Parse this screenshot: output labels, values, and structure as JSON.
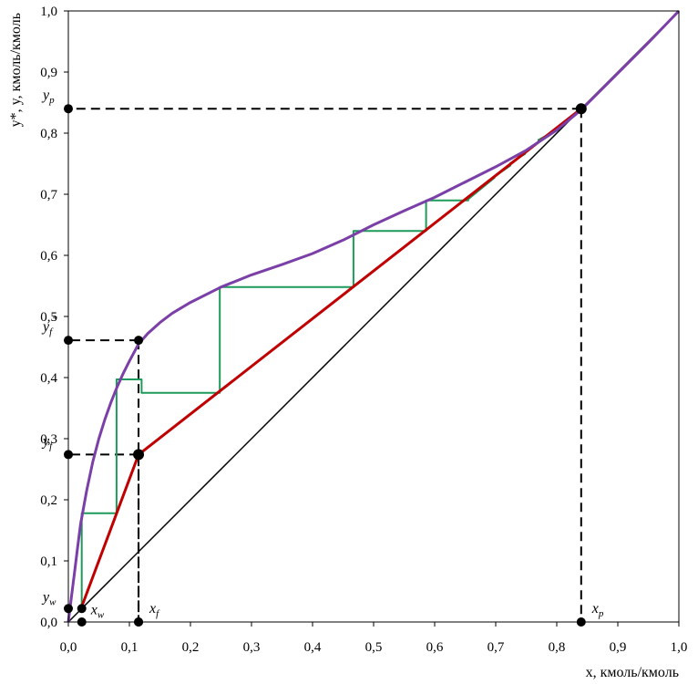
{
  "chart_data": {
    "type": "line",
    "xlabel": "x, кмоль/кмоль",
    "ylabel": "y*, y, кмоль/кмоль",
    "xlim": [
      0,
      1
    ],
    "ylim": [
      0,
      1
    ],
    "x_ticks": [
      "0,0",
      "0,1",
      "0,2",
      "0,3",
      "0,4",
      "0,5",
      "0,6",
      "0,7",
      "0,8",
      "0,9",
      "1,0"
    ],
    "y_ticks": [
      "0,0",
      "0,1",
      "0,2",
      "0,3",
      "0,4",
      "0,5",
      "0,6",
      "0,7",
      "0,8",
      "0,9",
      "1,0"
    ],
    "grid": false,
    "series": [
      {
        "kind": "equilibrium",
        "color": "#7b3fa8",
        "points": [
          [
            0,
            0
          ],
          [
            0.005,
            0.04
          ],
          [
            0.01,
            0.08
          ],
          [
            0.015,
            0.12
          ],
          [
            0.02,
            0.16
          ],
          [
            0.03,
            0.215
          ],
          [
            0.04,
            0.262
          ],
          [
            0.05,
            0.3
          ],
          [
            0.06,
            0.332
          ],
          [
            0.07,
            0.36
          ],
          [
            0.08,
            0.385
          ],
          [
            0.09,
            0.407
          ],
          [
            0.1,
            0.427
          ],
          [
            0.115,
            0.455
          ],
          [
            0.13,
            0.472
          ],
          [
            0.15,
            0.49
          ],
          [
            0.17,
            0.505
          ],
          [
            0.2,
            0.523
          ],
          [
            0.25,
            0.548
          ],
          [
            0.3,
            0.568
          ],
          [
            0.35,
            0.585
          ],
          [
            0.4,
            0.603
          ],
          [
            0.45,
            0.625
          ],
          [
            0.5,
            0.65
          ],
          [
            0.55,
            0.673
          ],
          [
            0.6,
            0.695
          ],
          [
            0.65,
            0.72
          ],
          [
            0.7,
            0.745
          ],
          [
            0.75,
            0.772
          ],
          [
            0.8,
            0.805
          ],
          [
            0.84,
            0.838
          ],
          [
            0.9,
            0.898
          ],
          [
            0.95,
            0.948
          ],
          [
            1,
            1
          ]
        ]
      },
      {
        "kind": "stripping-operating-line",
        "color": "#c00000",
        "points": [
          [
            0.02,
            0.02
          ],
          [
            0.115,
            0.274
          ]
        ]
      },
      {
        "kind": "rectifying-operating-line",
        "color": "#c00000",
        "points": [
          [
            0.115,
            0.274
          ],
          [
            0.84,
            0.84
          ]
        ]
      },
      {
        "kind": "diagonal",
        "color": "#000000",
        "points": [
          [
            0,
            0
          ],
          [
            1,
            1
          ]
        ]
      },
      {
        "kind": "stages",
        "color": "#1e9a5a",
        "points": [
          [
            0.84,
            0.84
          ],
          [
            0.8,
            0.808
          ],
          [
            0.8,
            0.805
          ],
          [
            0.77,
            0.789
          ],
          [
            0.77,
            0.785
          ],
          [
            0.748,
            0.77
          ],
          [
            0.748,
            0.766
          ],
          [
            0.724,
            0.751
          ],
          [
            0.724,
            0.747
          ],
          [
            0.698,
            0.729
          ],
          [
            0.698,
            0.727
          ],
          [
            0.655,
            0.692
          ],
          [
            0.655,
            0.69
          ],
          [
            0.586,
            0.69
          ],
          [
            0.586,
            0.64
          ],
          [
            0.467,
            0.64
          ],
          [
            0.467,
            0.548
          ],
          [
            0.248,
            0.548
          ],
          [
            0.248,
            0.375
          ],
          [
            0.12,
            0.375
          ],
          [
            0.12,
            0.397
          ],
          [
            0.079,
            0.397
          ],
          [
            0.079,
            0.178
          ],
          [
            0.022,
            0.178
          ],
          [
            0.022,
            0.022
          ]
        ]
      }
    ],
    "reference_points": [
      {
        "name": "xp",
        "label": "x",
        "sub": "p",
        "x": 0.84,
        "y": 0.84
      },
      {
        "name": "xf",
        "label": "x",
        "sub": "f",
        "x": 0.115,
        "y": 0.274
      },
      {
        "name": "xf-star",
        "x": 0.115,
        "y": 0.461
      },
      {
        "name": "xw",
        "label": "x",
        "sub": "w",
        "x": 0.022,
        "y": 0.022
      }
    ],
    "y_annotations": [
      {
        "label": "y",
        "sub": "p",
        "sup": "",
        "y": 0.84
      },
      {
        "label": "y",
        "sub": "f",
        "sup": "*",
        "y": 0.461
      },
      {
        "label": "y",
        "sub": "f",
        "sup": "",
        "y": 0.274
      },
      {
        "label": "y",
        "sub": "w",
        "sup": "",
        "y": 0.022
      }
    ]
  }
}
